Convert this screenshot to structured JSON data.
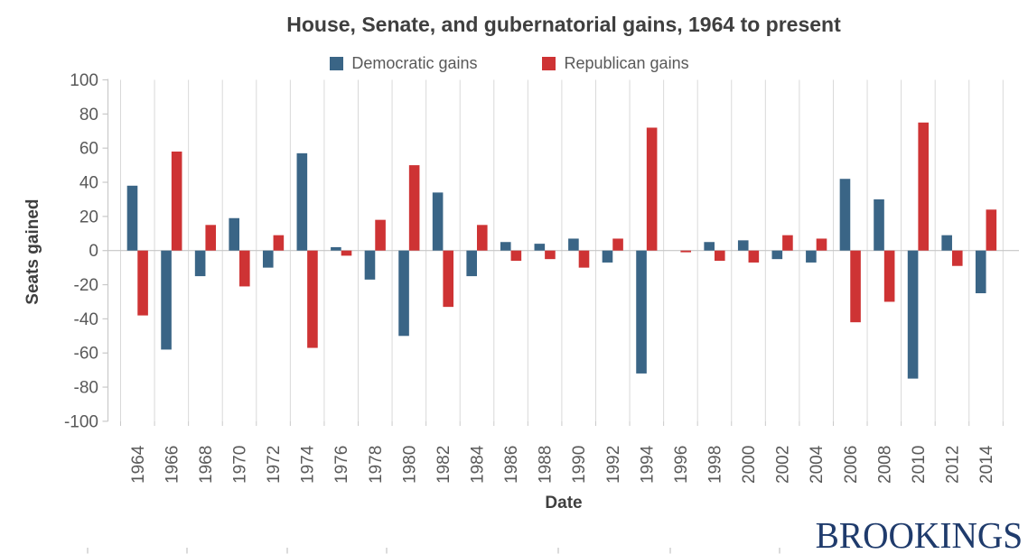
{
  "branding": {
    "logo_text": "BROOKINGS",
    "logo_color": "#1F3B6C"
  },
  "chart_data": {
    "type": "bar",
    "title": "House, Senate, and gubernatorial gains, 1964 to present",
    "xlabel": "Date",
    "ylabel": "Seats gained",
    "ylim": [
      -100,
      100
    ],
    "y_ticks": [
      100,
      80,
      60,
      40,
      20,
      0,
      -20,
      -40,
      -60,
      -80,
      -100
    ],
    "grid": "vertical-only",
    "legend_position": "top-center",
    "background": "#FFFFFF",
    "gridline_color": "#D9D9D9",
    "axis_color": "#C9C9C9",
    "tick_label_color": "#595959",
    "categories": [
      "1964",
      "1966",
      "1968",
      "1970",
      "1972",
      "1974",
      "1976",
      "1978",
      "1980",
      "1982",
      "1984",
      "1986",
      "1988",
      "1990",
      "1992",
      "1994",
      "1996",
      "1998",
      "2000",
      "2002",
      "2004",
      "2006",
      "2008",
      "2010",
      "2012",
      "2014"
    ],
    "series": [
      {
        "name": "Democratic gains",
        "color": "#3A6586",
        "values": [
          38,
          -58,
          -15,
          19,
          -10,
          57,
          2,
          -17,
          -50,
          34,
          -15,
          5,
          4,
          7,
          -7,
          -72,
          0,
          5,
          6,
          -5,
          -7,
          42,
          30,
          -75,
          9,
          -25
        ]
      },
      {
        "name": "Republican gains",
        "color": "#CE3334",
        "values": [
          -38,
          58,
          15,
          -21,
          9,
          -57,
          -3,
          18,
          50,
          -33,
          15,
          -6,
          -5,
          -10,
          7,
          72,
          -1,
          -6,
          -7,
          9,
          7,
          -42,
          -30,
          75,
          -9,
          24
        ]
      }
    ]
  }
}
